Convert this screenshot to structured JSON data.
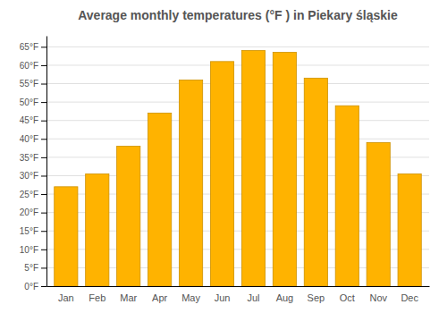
{
  "chart_data": {
    "type": "bar",
    "title": "Average monthly temperatures (°F ) in Piekary śląskie",
    "categories": [
      "Jan",
      "Feb",
      "Mar",
      "Apr",
      "May",
      "Jun",
      "Jul",
      "Aug",
      "Sep",
      "Oct",
      "Nov",
      "Dec"
    ],
    "values": [
      27,
      30.5,
      38,
      47,
      56,
      61,
      64,
      63.5,
      56.5,
      49,
      39,
      30.5
    ],
    "color": "#FFB300",
    "ylim": [
      0,
      68
    ],
    "yticks": [
      {
        "value": 0,
        "label": "0°F"
      },
      {
        "value": 5,
        "label": "5°F"
      },
      {
        "value": 10,
        "label": "10°F"
      },
      {
        "value": 15,
        "label": "15°F"
      },
      {
        "value": 20,
        "label": "20°F"
      },
      {
        "value": 25,
        "label": "25°F"
      },
      {
        "value": 30,
        "label": "30°F"
      },
      {
        "value": 35,
        "label": "35°F"
      },
      {
        "value": 40,
        "label": "40°F"
      },
      {
        "value": 45,
        "label": "45°F"
      },
      {
        "value": 50,
        "label": "50°F"
      },
      {
        "value": 55,
        "label": "55°F"
      },
      {
        "value": 60,
        "label": "60°F"
      },
      {
        "value": 65,
        "label": "65°F"
      }
    ],
    "grid": true
  }
}
